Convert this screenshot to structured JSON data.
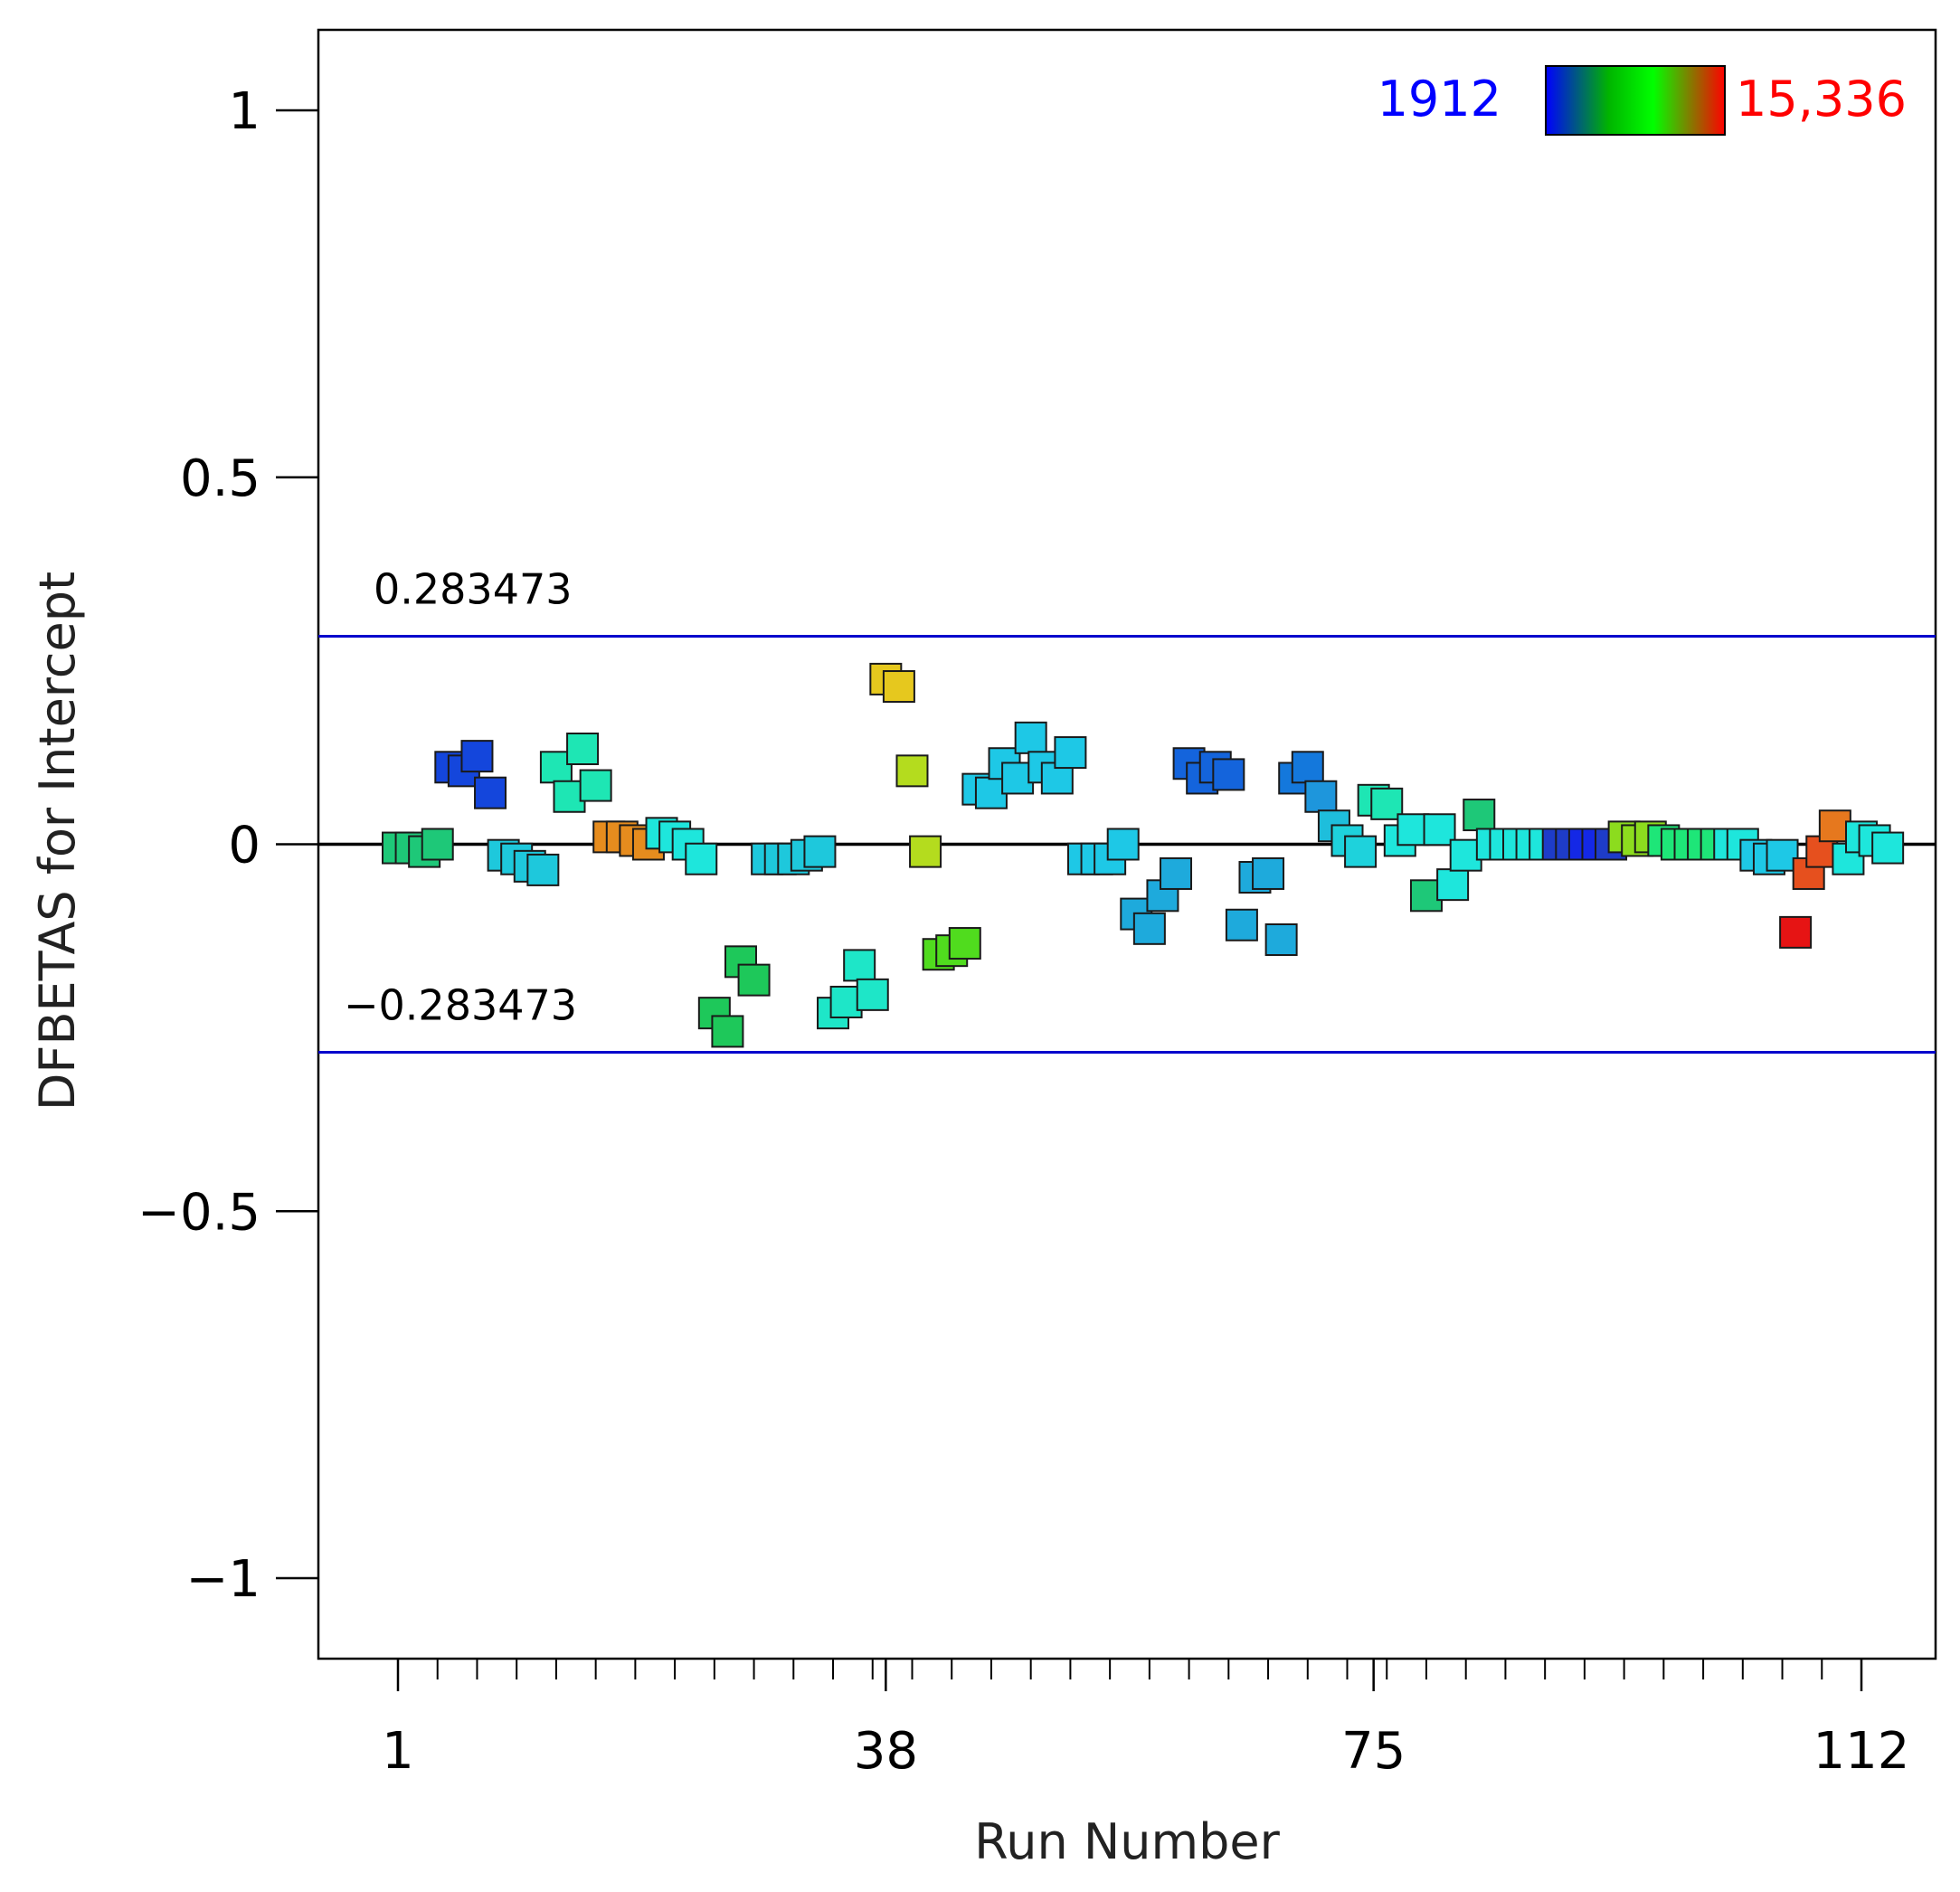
{
  "chart_data": {
    "type": "scatter",
    "title": "",
    "xlabel": "Run Number",
    "ylabel": "DFBETAS for Intercept",
    "xlim": [
      -2,
      115
    ],
    "ylim": [
      -1.11,
      1.11
    ],
    "x_ticks": [
      1,
      38,
      75,
      112
    ],
    "x_tick_labels": [
      "1",
      "38",
      "75",
      "112"
    ],
    "y_ticks": [
      1,
      0.5,
      0,
      -0.5,
      -1
    ],
    "y_tick_labels": [
      "1",
      "0.5",
      "0",
      "−0.5",
      "−1"
    ],
    "grid": false,
    "reference_lines": [
      {
        "value": 0.283473,
        "label": "0.283473",
        "color": "#0000cc"
      },
      {
        "value": -0.283473,
        "label": "−0.283473",
        "color": "#0000cc"
      },
      {
        "value": 0,
        "label": "",
        "color": "#000000"
      }
    ],
    "color_scale": {
      "min_label": "1912",
      "max_label": "15,336",
      "min_value": 1912,
      "max_value": 15336,
      "min_color": "#0000ff",
      "max_color": "#ff0000",
      "gradient": [
        "#0000ff",
        "#00c800",
        "#00ff00",
        "#ff0000"
      ],
      "legend_position": "top-right"
    },
    "series": [
      {
        "name": "DFBETAS",
        "marker": "square",
        "points": [
          {
            "x": 1,
            "y": -0.005,
            "color": "#1ec878"
          },
          {
            "x": 2,
            "y": -0.005,
            "color": "#1ec878"
          },
          {
            "x": 3,
            "y": -0.01,
            "color": "#1ec878"
          },
          {
            "x": 4,
            "y": 0.0,
            "color": "#1ec878"
          },
          {
            "x": 5,
            "y": 0.105,
            "color": "#1446dc"
          },
          {
            "x": 6,
            "y": 0.1,
            "color": "#1446dc"
          },
          {
            "x": 7,
            "y": 0.12,
            "color": "#1446dc"
          },
          {
            "x": 8,
            "y": 0.07,
            "color": "#1446dc"
          },
          {
            "x": 9,
            "y": -0.015,
            "color": "#1ec8dc"
          },
          {
            "x": 10,
            "y": -0.02,
            "color": "#1ec8dc"
          },
          {
            "x": 11,
            "y": -0.03,
            "color": "#1ec8dc"
          },
          {
            "x": 12,
            "y": -0.035,
            "color": "#1ec8dc"
          },
          {
            "x": 13,
            "y": 0.105,
            "color": "#1ee6b4"
          },
          {
            "x": 14,
            "y": 0.065,
            "color": "#1ee6b4"
          },
          {
            "x": 15,
            "y": 0.13,
            "color": "#1ee6b4"
          },
          {
            "x": 16,
            "y": 0.08,
            "color": "#1ee6b4"
          },
          {
            "x": 17,
            "y": 0.01,
            "color": "#e68c1e"
          },
          {
            "x": 18,
            "y": 0.01,
            "color": "#e68c1e"
          },
          {
            "x": 19,
            "y": 0.005,
            "color": "#e68c1e"
          },
          {
            "x": 20,
            "y": 0.0,
            "color": "#e68c1e"
          },
          {
            "x": 21,
            "y": 0.015,
            "color": "#1ee6dc"
          },
          {
            "x": 22,
            "y": 0.01,
            "color": "#1ee6dc"
          },
          {
            "x": 23,
            "y": 0.0,
            "color": "#1ee6dc"
          },
          {
            "x": 24,
            "y": -0.02,
            "color": "#1ee6dc"
          },
          {
            "x": 25,
            "y": -0.23,
            "color": "#1ec85a"
          },
          {
            "x": 26,
            "y": -0.255,
            "color": "#1ec85a"
          },
          {
            "x": 27,
            "y": -0.16,
            "color": "#1ec85a"
          },
          {
            "x": 28,
            "y": -0.185,
            "color": "#1ec85a"
          },
          {
            "x": 29,
            "y": -0.02,
            "color": "#1ec8dc"
          },
          {
            "x": 30,
            "y": -0.02,
            "color": "#1ec8dc"
          },
          {
            "x": 31,
            "y": -0.02,
            "color": "#1ec8dc"
          },
          {
            "x": 32,
            "y": -0.015,
            "color": "#1ec8dc"
          },
          {
            "x": 33,
            "y": -0.01,
            "color": "#1ec8dc"
          },
          {
            "x": 34,
            "y": -0.23,
            "color": "#1ee6c8"
          },
          {
            "x": 35,
            "y": -0.215,
            "color": "#1ee6c8"
          },
          {
            "x": 36,
            "y": -0.165,
            "color": "#1ee6c8"
          },
          {
            "x": 37,
            "y": -0.205,
            "color": "#1ee6c8"
          },
          {
            "x": 38,
            "y": 0.225,
            "color": "#e6c81e"
          },
          {
            "x": 39,
            "y": 0.215,
            "color": "#e6c81e"
          },
          {
            "x": 40,
            "y": 0.1,
            "color": "#b4dc1e"
          },
          {
            "x": 41,
            "y": -0.01,
            "color": "#b4dc1e"
          },
          {
            "x": 42,
            "y": -0.15,
            "color": "#50dc1e"
          },
          {
            "x": 43,
            "y": -0.145,
            "color": "#50dc1e"
          },
          {
            "x": 44,
            "y": -0.135,
            "color": "#50dc1e"
          },
          {
            "x": 45,
            "y": 0.075,
            "color": "#1ec8e6"
          },
          {
            "x": 46,
            "y": 0.07,
            "color": "#1ec8e6"
          },
          {
            "x": 47,
            "y": 0.11,
            "color": "#1ec8e6"
          },
          {
            "x": 48,
            "y": 0.09,
            "color": "#1ec8e6"
          },
          {
            "x": 49,
            "y": 0.145,
            "color": "#1ec8e6"
          },
          {
            "x": 50,
            "y": 0.105,
            "color": "#1ec8e6"
          },
          {
            "x": 51,
            "y": 0.09,
            "color": "#1ec8e6"
          },
          {
            "x": 52,
            "y": 0.125,
            "color": "#1ec8e6"
          },
          {
            "x": 53,
            "y": -0.02,
            "color": "#1ec8e6"
          },
          {
            "x": 54,
            "y": -0.02,
            "color": "#1ec8e6"
          },
          {
            "x": 55,
            "y": -0.02,
            "color": "#1ec8e6"
          },
          {
            "x": 56,
            "y": 0.0,
            "color": "#1ec8e6"
          },
          {
            "x": 57,
            "y": -0.095,
            "color": "#1eaadc"
          },
          {
            "x": 58,
            "y": -0.115,
            "color": "#1eaadc"
          },
          {
            "x": 59,
            "y": -0.07,
            "color": "#1eaadc"
          },
          {
            "x": 60,
            "y": -0.04,
            "color": "#1eaadc"
          },
          {
            "x": 61,
            "y": 0.11,
            "color": "#1464dc"
          },
          {
            "x": 62,
            "y": 0.09,
            "color": "#1464dc"
          },
          {
            "x": 63,
            "y": 0.105,
            "color": "#1464dc"
          },
          {
            "x": 64,
            "y": 0.095,
            "color": "#1464dc"
          },
          {
            "x": 65,
            "y": -0.11,
            "color": "#1eaadc"
          },
          {
            "x": 66,
            "y": -0.045,
            "color": "#1eaadc"
          },
          {
            "x": 67,
            "y": -0.04,
            "color": "#1eaadc"
          },
          {
            "x": 68,
            "y": -0.13,
            "color": "#1eaadc"
          },
          {
            "x": 69,
            "y": 0.09,
            "color": "#1478dc"
          },
          {
            "x": 70,
            "y": 0.105,
            "color": "#1478dc"
          },
          {
            "x": 71,
            "y": 0.065,
            "color": "#1e96dc"
          },
          {
            "x": 72,
            "y": 0.025,
            "color": "#1ebedc"
          },
          {
            "x": 73,
            "y": 0.005,
            "color": "#1ed2dc"
          },
          {
            "x": 74,
            "y": -0.01,
            "color": "#1ed2dc"
          },
          {
            "x": 75,
            "y": 0.06,
            "color": "#1ee6b4"
          },
          {
            "x": 76,
            "y": 0.055,
            "color": "#1ee6b4"
          },
          {
            "x": 77,
            "y": 0.005,
            "color": "#1ee6dc"
          },
          {
            "x": 78,
            "y": 0.02,
            "color": "#1ee6dc"
          },
          {
            "x": 79,
            "y": -0.07,
            "color": "#1ec878"
          },
          {
            "x": 80,
            "y": 0.02,
            "color": "#1ee6dc"
          },
          {
            "x": 81,
            "y": -0.055,
            "color": "#1ee6dc"
          },
          {
            "x": 82,
            "y": -0.015,
            "color": "#1ee6dc"
          },
          {
            "x": 83,
            "y": 0.04,
            "color": "#1ec878"
          },
          {
            "x": 84,
            "y": 0.0,
            "color": "#1ee6dc"
          },
          {
            "x": 85,
            "y": 0.0,
            "color": "#1ee6dc"
          },
          {
            "x": 86,
            "y": 0.0,
            "color": "#1ee6dc"
          },
          {
            "x": 87,
            "y": 0.0,
            "color": "#1ee6dc"
          },
          {
            "x": 88,
            "y": 0.0,
            "color": "#1ee6dc"
          },
          {
            "x": 89,
            "y": 0.0,
            "color": "#1e3cc8"
          },
          {
            "x": 90,
            "y": 0.0,
            "color": "#1e3cc8"
          },
          {
            "x": 91,
            "y": 0.0,
            "color": "#1428e6"
          },
          {
            "x": 92,
            "y": 0.0,
            "color": "#1428e6"
          },
          {
            "x": 93,
            "y": 0.0,
            "color": "#1e3cc8"
          },
          {
            "x": 94,
            "y": 0.01,
            "color": "#8cdc1e"
          },
          {
            "x": 95,
            "y": 0.005,
            "color": "#8cdc1e"
          },
          {
            "x": 96,
            "y": 0.01,
            "color": "#8cdc1e"
          },
          {
            "x": 97,
            "y": 0.005,
            "color": "#1ee678"
          },
          {
            "x": 98,
            "y": 0.0,
            "color": "#1ee678"
          },
          {
            "x": 99,
            "y": 0.0,
            "color": "#1ee678"
          },
          {
            "x": 100,
            "y": 0.0,
            "color": "#1ee678"
          },
          {
            "x": 101,
            "y": 0.0,
            "color": "#1ee678"
          },
          {
            "x": 102,
            "y": 0.0,
            "color": "#1ee6dc"
          },
          {
            "x": 103,
            "y": 0.0,
            "color": "#1ee6dc"
          },
          {
            "x": 104,
            "y": -0.015,
            "color": "#1ec8e6"
          },
          {
            "x": 105,
            "y": -0.02,
            "color": "#1ec8e6"
          },
          {
            "x": 106,
            "y": -0.015,
            "color": "#1ec8e6"
          },
          {
            "x": 107,
            "y": -0.12,
            "color": "#e61414"
          },
          {
            "x": 108,
            "y": -0.04,
            "color": "#e6501e"
          },
          {
            "x": 109,
            "y": -0.01,
            "color": "#e6501e"
          },
          {
            "x": 110,
            "y": 0.025,
            "color": "#e6781e"
          },
          {
            "x": 111,
            "y": -0.02,
            "color": "#1ee6dc"
          },
          {
            "x": 112,
            "y": 0.01,
            "color": "#1ee6dc"
          },
          {
            "x": 113,
            "y": 0.005,
            "color": "#1ee6dc"
          },
          {
            "x": 114,
            "y": -0.005,
            "color": "#1ee6dc"
          }
        ]
      }
    ]
  }
}
